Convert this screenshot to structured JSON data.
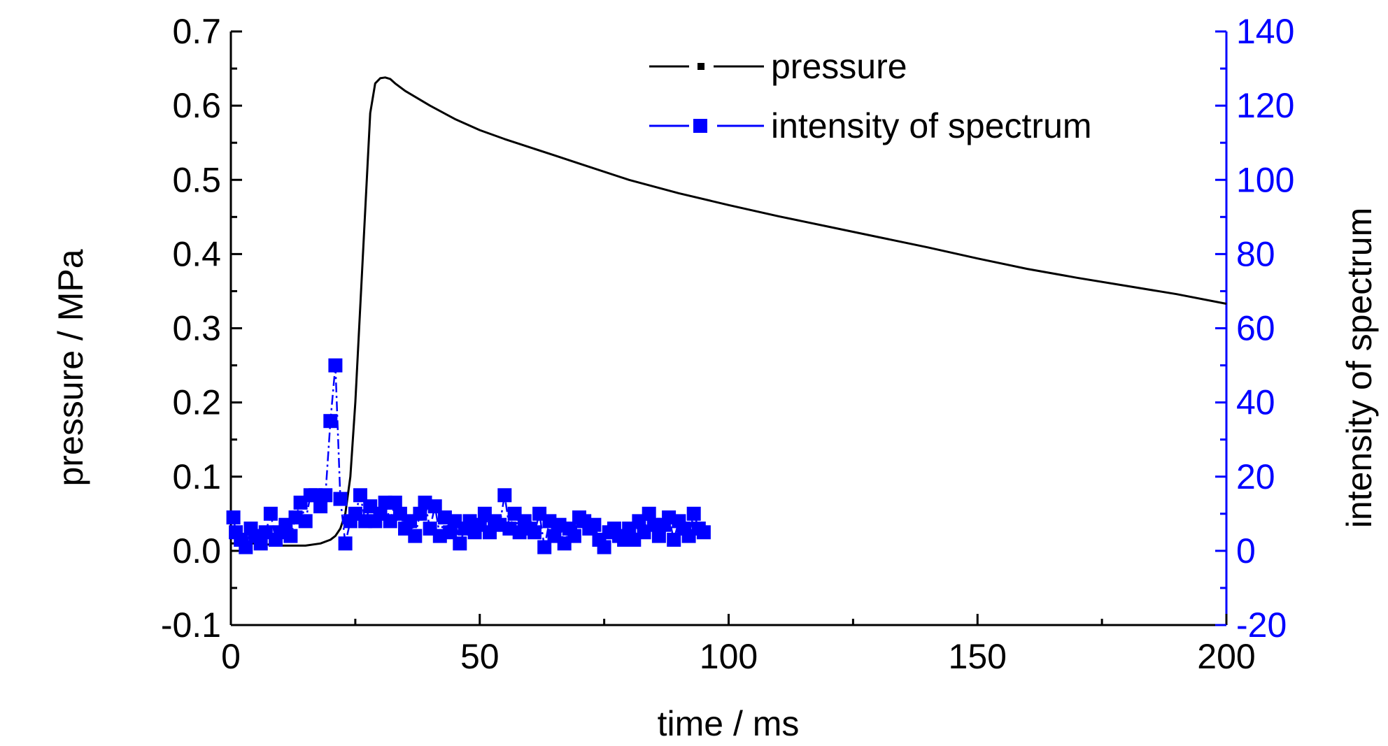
{
  "chart_data": {
    "type": "line",
    "xlabel": "time / ms",
    "ylabel_left": "pressure / MPa",
    "ylabel_right": "intensity of spectrum",
    "xlim": [
      0,
      200
    ],
    "ylim_left": [
      -0.1,
      0.7
    ],
    "ylim_right": [
      -20,
      140
    ],
    "x_ticks": [
      "0",
      "50",
      "100",
      "150",
      "200"
    ],
    "y_left_ticks": [
      "-0.1",
      "0.0",
      "0.1",
      "0.2",
      "0.3",
      "0.4",
      "0.5",
      "0.6",
      "0.7"
    ],
    "y_right_ticks": [
      "-20",
      "0",
      "20",
      "40",
      "60",
      "80",
      "100",
      "120",
      "140"
    ],
    "grid": false,
    "legend_position": "top-right",
    "colors": {
      "pressure": "#000000",
      "intensity": "#0000ff",
      "right_axis": "#0000ff"
    },
    "legend": [
      {
        "label": "pressure",
        "color": "#000000"
      },
      {
        "label": "intensity of spectrum",
        "color": "#0000ff"
      }
    ],
    "series": [
      {
        "name": "pressure",
        "axis": "left",
        "x": [
          0,
          5,
          10,
          15,
          18,
          20,
          21,
          22,
          23,
          24,
          25,
          26,
          27,
          28,
          29,
          30,
          31,
          32,
          33,
          35,
          40,
          45,
          50,
          55,
          60,
          65,
          70,
          80,
          90,
          100,
          110,
          120,
          130,
          140,
          150,
          160,
          170,
          180,
          190,
          200
        ],
        "y": [
          0.01,
          0.01,
          0.007,
          0.007,
          0.01,
          0.015,
          0.02,
          0.03,
          0.05,
          0.1,
          0.2,
          0.33,
          0.46,
          0.59,
          0.63,
          0.637,
          0.638,
          0.636,
          0.63,
          0.62,
          0.6,
          0.582,
          0.567,
          0.555,
          0.544,
          0.533,
          0.522,
          0.5,
          0.482,
          0.466,
          0.451,
          0.437,
          0.423,
          0.409,
          0.394,
          0.38,
          0.368,
          0.357,
          0.346,
          0.333
        ]
      },
      {
        "name": "intensity of spectrum",
        "axis": "right",
        "x": [
          0.5,
          1,
          2,
          3,
          4,
          5,
          6,
          7,
          8,
          9,
          10,
          11,
          12,
          13,
          14,
          15,
          16,
          17,
          18,
          19,
          20,
          21,
          22,
          23,
          24,
          25,
          26,
          27,
          28,
          29,
          30,
          31,
          32,
          33,
          34,
          35,
          36,
          37,
          38,
          39,
          40,
          41,
          42,
          43,
          44,
          45,
          46,
          47,
          48,
          49,
          50,
          51,
          52,
          53,
          54,
          55,
          56,
          57,
          58,
          59,
          60,
          61,
          62,
          63,
          64,
          65,
          66,
          67,
          68,
          69,
          70,
          71,
          72,
          73,
          74,
          75,
          76,
          77,
          78,
          79,
          80,
          81,
          82,
          83,
          84,
          85,
          86,
          87,
          88,
          89,
          90,
          91,
          92,
          93,
          94,
          95
        ],
        "y": [
          9,
          5,
          3,
          1,
          6,
          4,
          2,
          5,
          10,
          3,
          5,
          7,
          4,
          9,
          13,
          8,
          15,
          15,
          12,
          15,
          35,
          50,
          14,
          2,
          8,
          10,
          15,
          8,
          12,
          8,
          10,
          13,
          8,
          13,
          10,
          6,
          8,
          4,
          10,
          13,
          6,
          12,
          4,
          9,
          5,
          8,
          2,
          6,
          8,
          5,
          7,
          10,
          5,
          8,
          7,
          15,
          6,
          10,
          5,
          8,
          6,
          5,
          10,
          1,
          8,
          4,
          7,
          2,
          6,
          4,
          9,
          8,
          6,
          7,
          3,
          1,
          5,
          6,
          4,
          3,
          6,
          3,
          8,
          5,
          10,
          7,
          4,
          7,
          9,
          3,
          8,
          6,
          4,
          10,
          6,
          5
        ]
      }
    ]
  }
}
